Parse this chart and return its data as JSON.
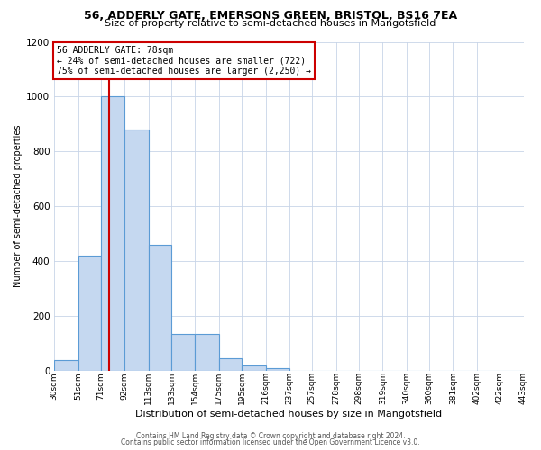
{
  "title1": "56, ADDERLY GATE, EMERSONS GREEN, BRISTOL, BS16 7EA",
  "title2": "Size of property relative to semi-detached houses in Mangotsfield",
  "xlabel": "Distribution of semi-detached houses by size in Mangotsfield",
  "ylabel": "Number of semi-detached properties",
  "footnote1": "Contains HM Land Registry data © Crown copyright and database right 2024.",
  "footnote2": "Contains public sector information licensed under the Open Government Licence v3.0.",
  "bin_edges": [
    30,
    51,
    71,
    92,
    113,
    133,
    154,
    175,
    195,
    216,
    237,
    257,
    278,
    298,
    319,
    340,
    360,
    381,
    402,
    422,
    443
  ],
  "bin_labels": [
    "30sqm",
    "51sqm",
    "71sqm",
    "92sqm",
    "113sqm",
    "133sqm",
    "154sqm",
    "175sqm",
    "195sqm",
    "216sqm",
    "237sqm",
    "257sqm",
    "278sqm",
    "298sqm",
    "319sqm",
    "340sqm",
    "360sqm",
    "381sqm",
    "402sqm",
    "422sqm",
    "443sqm"
  ],
  "bar_heights": [
    40,
    420,
    1000,
    880,
    460,
    135,
    135,
    45,
    20,
    10,
    0,
    0,
    0,
    0,
    0,
    0,
    0,
    0,
    0,
    0
  ],
  "bar_color": "#c5d8f0",
  "bar_edgecolor": "#5b9bd5",
  "property_line_x": 78,
  "property_line_color": "#cc0000",
  "annotation_title": "56 ADDERLY GATE: 78sqm",
  "annotation_line1": "← 24% of semi-detached houses are smaller (722)",
  "annotation_line2": "75% of semi-detached houses are larger (2,250) →",
  "annotation_box_color": "#cc0000",
  "ylim": [
    0,
    1200
  ],
  "yticks": [
    0,
    200,
    400,
    600,
    800,
    1000,
    1200
  ],
  "background_color": "#ffffff",
  "grid_color": "#c8d4e8"
}
